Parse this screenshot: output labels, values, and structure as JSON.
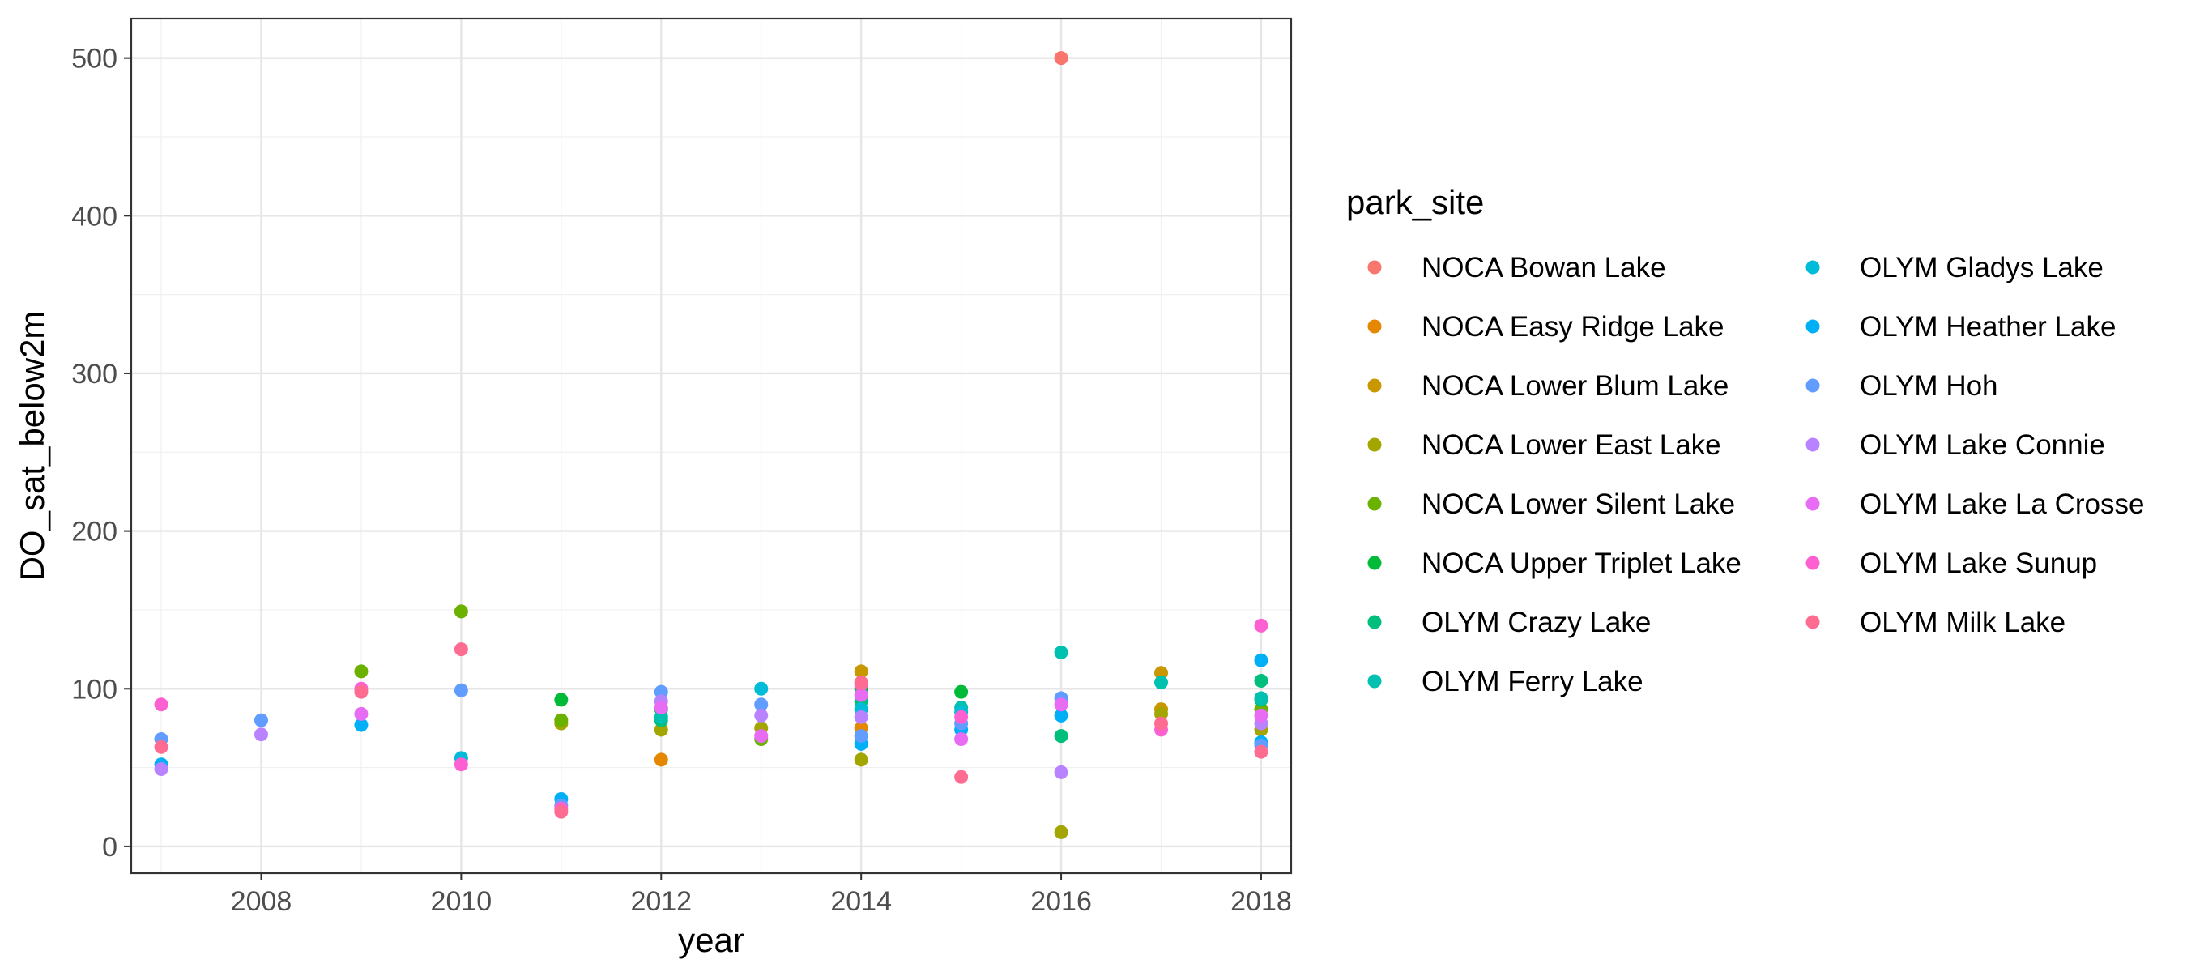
{
  "chart_data": {
    "type": "scatter",
    "xlabel": "year",
    "ylabel": "DO_sat_below2m",
    "xlim": [
      2006.7,
      2018.3
    ],
    "ylim": [
      -17,
      525
    ],
    "x_ticks": [
      2008,
      2010,
      2012,
      2014,
      2016,
      2018
    ],
    "y_ticks": [
      0,
      100,
      200,
      300,
      400,
      500
    ],
    "grid": true,
    "legend_title": "park_site",
    "legend_position": "right",
    "series": [
      {
        "name": "NOCA Bowan Lake",
        "color": "#F8766D",
        "points": [
          [
            2016,
            500
          ]
        ]
      },
      {
        "name": "NOCA Easy Ridge Lake",
        "color": "#E58700",
        "points": [
          [
            2012,
            55
          ],
          [
            2014,
            75
          ]
        ]
      },
      {
        "name": "NOCA Lower Blum Lake",
        "color": "#C99800",
        "points": [
          [
            2014,
            111
          ],
          [
            2017,
            110
          ],
          [
            2017,
            87
          ]
        ]
      },
      {
        "name": "NOCA Lower East Lake",
        "color": "#A3A500",
        "points": [
          [
            2011,
            78
          ],
          [
            2012,
            74
          ],
          [
            2013,
            75
          ],
          [
            2014,
            55
          ],
          [
            2016,
            9
          ],
          [
            2017,
            84
          ],
          [
            2018,
            74
          ]
        ]
      },
      {
        "name": "NOCA Lower Silent Lake",
        "color": "#6BB100",
        "points": [
          [
            2009,
            111
          ],
          [
            2010,
            149
          ],
          [
            2011,
            80
          ],
          [
            2013,
            68
          ],
          [
            2018,
            87
          ]
        ]
      },
      {
        "name": "NOCA Upper Triplet Lake",
        "color": "#00BA38",
        "points": [
          [
            2011,
            93
          ],
          [
            2012,
            87
          ],
          [
            2014,
            100
          ],
          [
            2015,
            98
          ]
        ]
      },
      {
        "name": "OLYM Crazy Lake",
        "color": "#00BF7D",
        "points": [
          [
            2012,
            80
          ],
          [
            2014,
            92
          ],
          [
            2016,
            70
          ],
          [
            2018,
            105
          ],
          [
            2018,
            93
          ]
        ]
      },
      {
        "name": "OLYM Ferry Lake",
        "color": "#00C0AF",
        "points": [
          [
            2012,
            82
          ],
          [
            2015,
            88
          ],
          [
            2016,
            123
          ],
          [
            2017,
            104
          ],
          [
            2018,
            94
          ]
        ]
      },
      {
        "name": "OLYM Gladys Lake",
        "color": "#00BCD8",
        "points": [
          [
            2010,
            56
          ],
          [
            2013,
            100
          ],
          [
            2014,
            87
          ],
          [
            2015,
            85
          ]
        ]
      },
      {
        "name": "OLYM Heather Lake",
        "color": "#00B0F6",
        "points": [
          [
            2007,
            52
          ],
          [
            2009,
            77
          ],
          [
            2011,
            30
          ],
          [
            2014,
            65
          ],
          [
            2015,
            74
          ],
          [
            2016,
            83
          ],
          [
            2018,
            118
          ],
          [
            2018,
            66
          ]
        ]
      },
      {
        "name": "OLYM Hoh",
        "color": "#619CFF",
        "points": [
          [
            2007,
            68
          ],
          [
            2008,
            80
          ],
          [
            2010,
            99
          ],
          [
            2011,
            26
          ],
          [
            2012,
            98
          ],
          [
            2013,
            90
          ],
          [
            2014,
            70
          ],
          [
            2015,
            78
          ],
          [
            2016,
            94
          ],
          [
            2018,
            64
          ]
        ]
      },
      {
        "name": "OLYM Lake Connie",
        "color": "#B983FF",
        "points": [
          [
            2007,
            49
          ],
          [
            2008,
            71
          ],
          [
            2012,
            92
          ],
          [
            2013,
            83
          ],
          [
            2014,
            82
          ],
          [
            2016,
            47
          ],
          [
            2018,
            78
          ]
        ]
      },
      {
        "name": "OLYM Lake La Crosse",
        "color": "#E76BF3",
        "points": [
          [
            2009,
            84
          ],
          [
            2012,
            88
          ],
          [
            2013,
            70
          ],
          [
            2014,
            96
          ],
          [
            2015,
            68
          ],
          [
            2016,
            90
          ],
          [
            2018,
            83
          ]
        ]
      },
      {
        "name": "OLYM Lake Sunup",
        "color": "#FD61D1",
        "points": [
          [
            2007,
            90
          ],
          [
            2009,
            100
          ],
          [
            2010,
            52
          ],
          [
            2011,
            24
          ],
          [
            2014,
            103
          ],
          [
            2015,
            82
          ],
          [
            2017,
            74
          ],
          [
            2018,
            140
          ]
        ]
      },
      {
        "name": "OLYM Milk Lake",
        "color": "#FF6C91",
        "points": [
          [
            2007,
            63
          ],
          [
            2009,
            98
          ],
          [
            2010,
            125
          ],
          [
            2011,
            22
          ],
          [
            2014,
            104
          ],
          [
            2015,
            44
          ],
          [
            2017,
            78
          ],
          [
            2018,
            60
          ]
        ]
      }
    ]
  }
}
